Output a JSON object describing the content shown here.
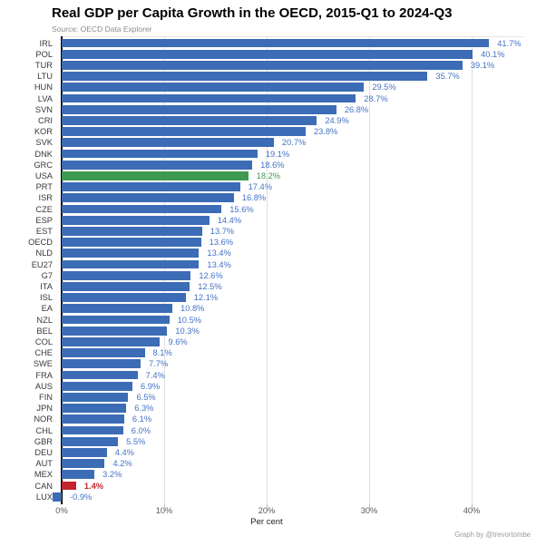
{
  "chart_data": {
    "type": "bar",
    "orientation": "horizontal",
    "title": "Real GDP per Capita Growth in the OECD, 2015-Q1 to 2024-Q3",
    "subtitle": "Source: OECD Data Explorer",
    "credit": "Graph by @trevortombe",
    "xlabel": "Per cent",
    "x_tick_values": [
      0,
      10,
      20,
      30,
      40
    ],
    "x_tick_labels": [
      "0%",
      "10%",
      "20%",
      "30%",
      "40%"
    ],
    "xlim": [
      -2.5,
      45
    ],
    "grid": "vertical",
    "value_label_format": "one-decimal-percent",
    "categories": [
      "IRL",
      "POL",
      "TUR",
      "LTU",
      "HUN",
      "LVA",
      "SVN",
      "CRI",
      "KOR",
      "SVK",
      "DNK",
      "GRC",
      "USA",
      "PRT",
      "ISR",
      "CZE",
      "ESP",
      "EST",
      "OECD",
      "NLD",
      "EU27",
      "G7",
      "ITA",
      "ISL",
      "EA",
      "NZL",
      "BEL",
      "COL",
      "CHE",
      "SWE",
      "FRA",
      "AUS",
      "FIN",
      "JPN",
      "NOR",
      "CHL",
      "GBR",
      "DEU",
      "AUT",
      "MEX",
      "CAN",
      "LUX"
    ],
    "values": [
      41.7,
      40.1,
      39.1,
      35.7,
      29.5,
      28.7,
      26.8,
      24.9,
      23.8,
      20.7,
      19.1,
      18.6,
      18.2,
      17.4,
      16.8,
      15.6,
      14.4,
      13.7,
      13.6,
      13.4,
      13.4,
      12.6,
      12.5,
      12.1,
      10.8,
      10.5,
      10.3,
      9.6,
      8.1,
      7.7,
      7.4,
      6.9,
      6.5,
      6.3,
      6.1,
      6.0,
      5.5,
      4.4,
      4.2,
      3.2,
      1.4,
      -0.9
    ],
    "highlights": {
      "USA": "green",
      "CAN": "red"
    },
    "colors": {
      "bar_blue": "#3C6CB5",
      "bar_green": "#3F9950",
      "bar_red": "#C4242C",
      "label_blue": "#4472C4",
      "label_green": "#3F9950",
      "label_red": "#C4242C",
      "axis": "#000000",
      "gridline": "#DEDEDE"
    }
  }
}
